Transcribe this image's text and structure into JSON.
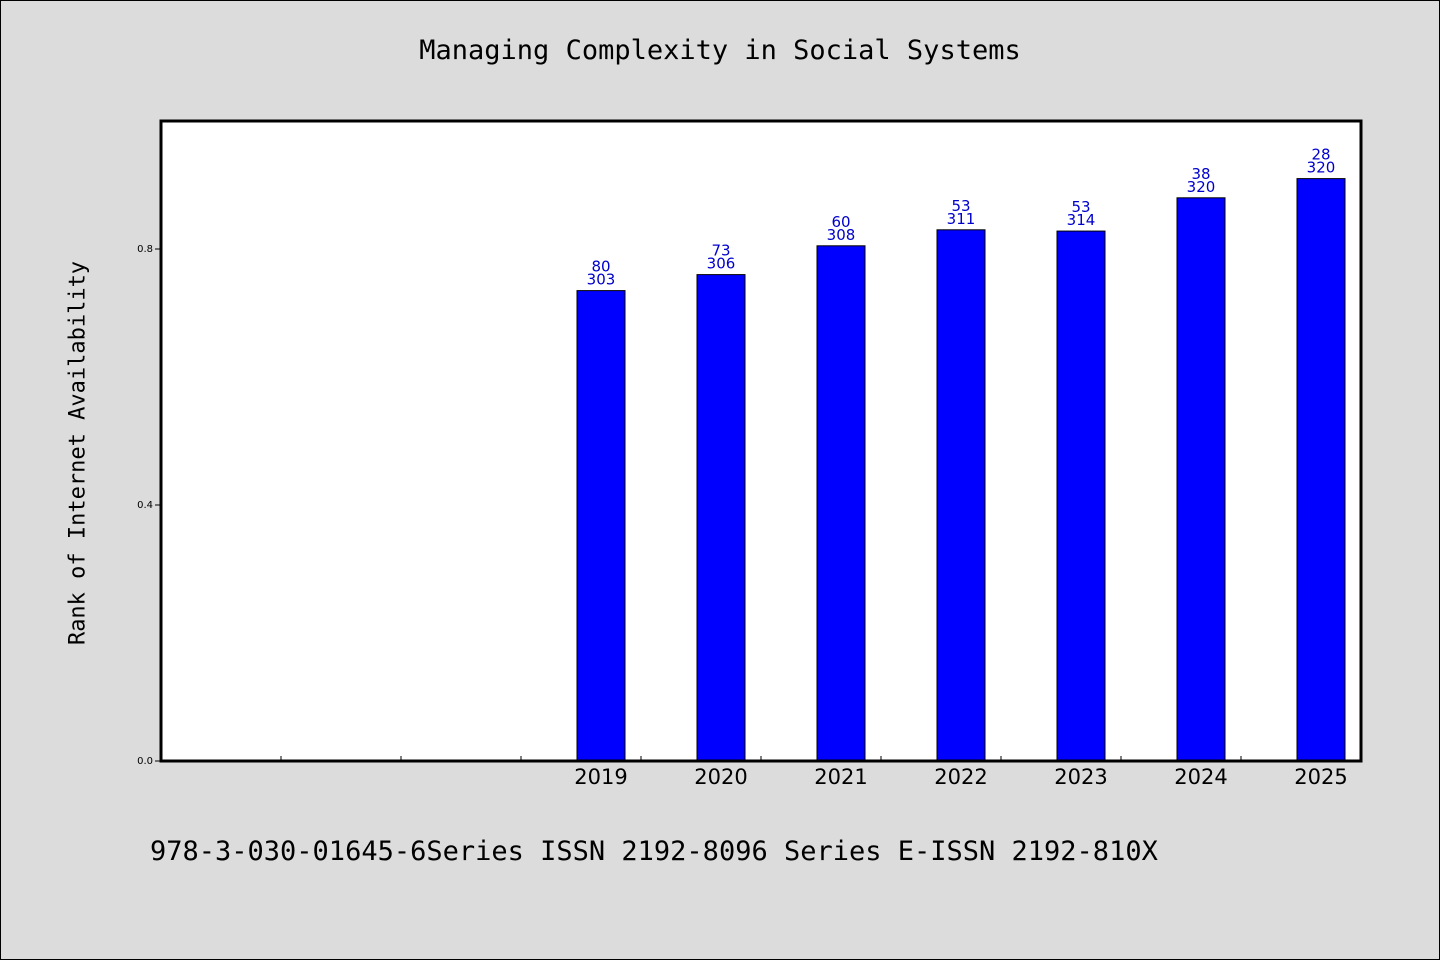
{
  "chart_data": {
    "type": "bar",
    "title": "Managing Complexity in Social Systems",
    "ylabel": "Rank of Internet Availability",
    "xlabel": "",
    "categories": [
      "",
      "",
      "",
      "2019",
      "2020",
      "2021",
      "2022",
      "2023",
      "2024",
      "2025"
    ],
    "values": [
      null,
      null,
      null,
      0.735,
      0.76,
      0.805,
      0.83,
      0.828,
      0.88,
      0.91
    ],
    "labels_top": [
      "",
      "",
      "",
      "80",
      "73",
      "60",
      "53",
      "53",
      "38",
      "28"
    ],
    "labels_bottom": [
      "",
      "",
      "",
      "303",
      "306",
      "308",
      "311",
      "314",
      "320",
      "320"
    ],
    "ylim": [
      0,
      1.0
    ],
    "yticks": [
      {
        "value": 0.0,
        "label": "0.0"
      },
      {
        "value": 0.4,
        "label": "0.4"
      },
      {
        "value": 0.8,
        "label": "0.8"
      }
    ],
    "grid": false,
    "bar_color": "#0000ff",
    "label_color": "#0000cc",
    "background": "#dcdcdc",
    "plot_background": "#ffffff"
  },
  "footer": {
    "text": "978-3-030-01645-6Series ISSN 2192-8096 Series E-ISSN 2192-810X"
  }
}
